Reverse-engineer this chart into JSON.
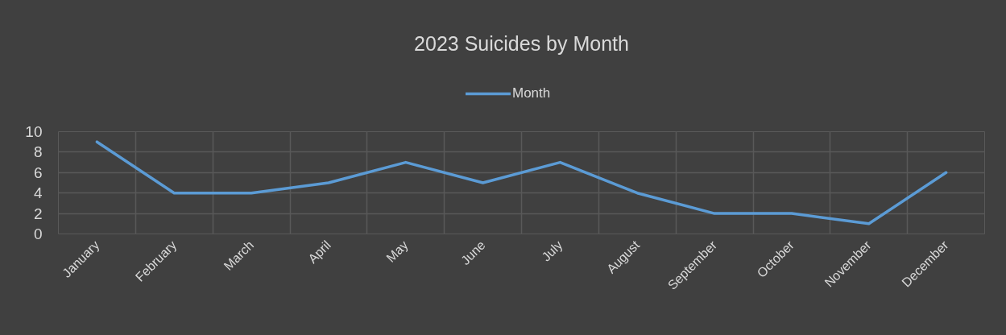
{
  "chart_data": {
    "type": "line",
    "title": "2023 Suicides by Month",
    "categories": [
      "January",
      "February",
      "March",
      "April",
      "May",
      "June",
      "July",
      "August",
      "September",
      "October",
      "November",
      "December"
    ],
    "series": [
      {
        "name": "Month",
        "color": "#5b9bd5",
        "values": [
          9,
          4,
          4,
          5,
          7,
          5,
          7,
          4,
          2,
          2,
          1,
          6
        ]
      }
    ],
    "ylim": [
      0,
      10
    ],
    "yticks": [
      0,
      2,
      4,
      6,
      8,
      10
    ],
    "grid": true,
    "legend": "top"
  }
}
